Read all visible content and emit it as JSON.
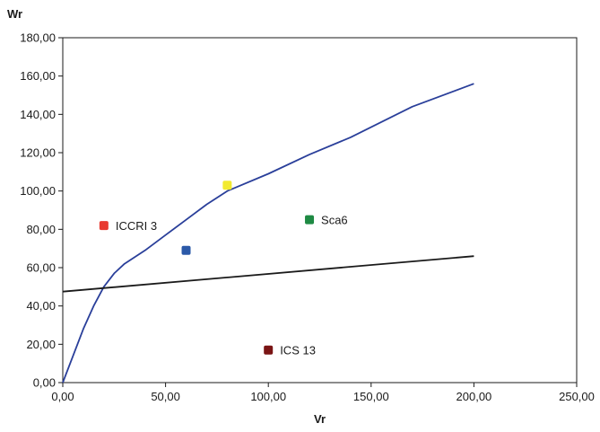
{
  "chart_data": {
    "type": "scatter",
    "xlabel": "Vr",
    "ylabel": "Wr",
    "xlim": [
      0,
      250
    ],
    "ylim": [
      0,
      180
    ],
    "x_ticks": [
      "0,00",
      "50,00",
      "100,00",
      "150,00",
      "200,00",
      "250,00"
    ],
    "y_ticks": [
      "0,00",
      "20,00",
      "40,00",
      "60,00",
      "80,00",
      "100,00",
      "120,00",
      "140,00",
      "160,00",
      "180,00"
    ],
    "grid": false,
    "legend": "none",
    "curves": [
      {
        "color": "#2a3f9a",
        "points": [
          [
            0,
            0
          ],
          [
            5,
            14
          ],
          [
            10,
            28
          ],
          [
            15,
            40
          ],
          [
            20,
            50
          ],
          [
            25,
            57
          ],
          [
            30,
            62
          ],
          [
            40,
            69
          ],
          [
            50,
            77
          ],
          [
            60,
            85
          ],
          [
            70,
            93
          ],
          [
            80,
            100
          ],
          [
            100,
            109
          ],
          [
            120,
            119
          ],
          [
            140,
            128
          ],
          [
            170,
            144
          ],
          [
            200,
            156
          ]
        ]
      },
      {
        "color": "#1a1a1a",
        "points": [
          [
            0,
            47.5
          ],
          [
            200,
            66
          ]
        ]
      }
    ],
    "points": [
      {
        "x": 20,
        "y": 82,
        "label": "ICCRI 3",
        "color": "#e83a30"
      },
      {
        "x": 60,
        "y": 69,
        "label": "",
        "color": "#2b59a8"
      },
      {
        "x": 80,
        "y": 103,
        "label": "",
        "color": "#f2ea30"
      },
      {
        "x": 120,
        "y": 85,
        "label": "Sca6",
        "color": "#1e8a43"
      },
      {
        "x": 100,
        "y": 17,
        "label": "ICS 13",
        "color": "#7a1414"
      }
    ]
  }
}
